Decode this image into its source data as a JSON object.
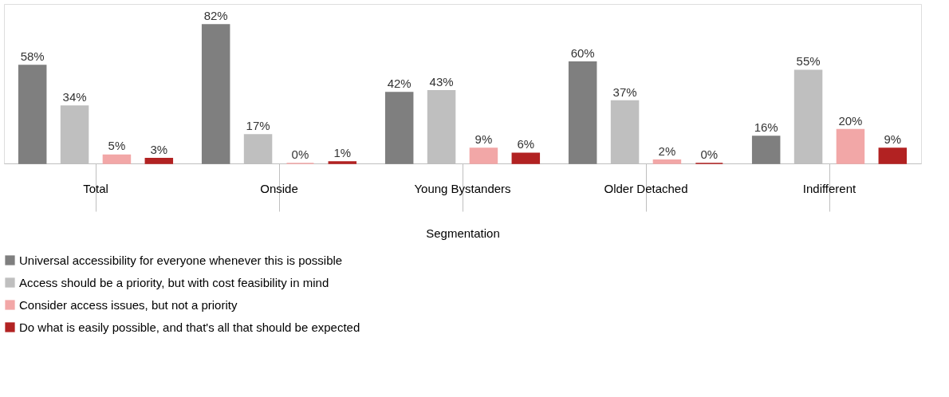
{
  "chart_data": {
    "type": "bar",
    "categories": [
      "Total",
      "Onside",
      "Young Bystanders",
      "Older Detached",
      "Indifferent"
    ],
    "xlabel": "Segmentation",
    "legend": "bottom",
    "grid": false,
    "series": [
      {
        "name": "Universal accessibility for everyone whenever this is possible",
        "color": "#7f7f7f",
        "values": [
          58,
          82,
          42,
          60,
          16
        ],
        "value_labels": [
          "58%",
          "82%",
          "42%",
          "60%",
          "16%"
        ]
      },
      {
        "name": "Access should be a priority, but with cost feasibility in mind",
        "color": "#bfbfbf",
        "values": [
          34,
          17,
          43,
          37,
          55
        ],
        "value_labels": [
          "34%",
          "17%",
          "43%",
          "37%",
          "55%"
        ]
      },
      {
        "name": "Consider access issues, but not a priority",
        "color": "#f2a7a7",
        "values": [
          5,
          0,
          9,
          2,
          20
        ],
        "value_labels": [
          "5%",
          "0%",
          "9%",
          "2%",
          "20%"
        ]
      },
      {
        "name": "Do what is easily possible, and that's all that should be expected",
        "color": "#b22222",
        "values": [
          3,
          1,
          6,
          0,
          9
        ],
        "value_labels": [
          "3%",
          "1%",
          "6%",
          "0%",
          "9%"
        ]
      }
    ]
  }
}
